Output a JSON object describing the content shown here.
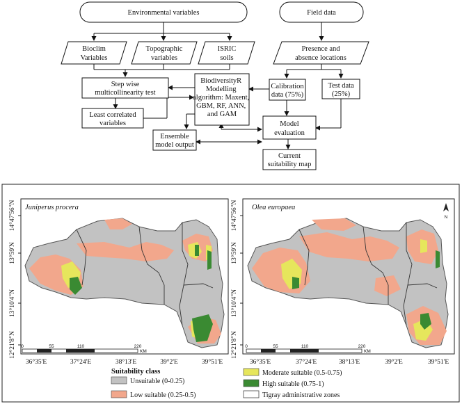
{
  "flowchart": {
    "nodes": {
      "env_vars": [
        "Environmental variables"
      ],
      "field_data": [
        "Field data"
      ],
      "bioclim": [
        "Bioclim",
        "Variables"
      ],
      "topo": [
        "Topographic",
        "variables"
      ],
      "isric": [
        "ISRIC",
        "soils"
      ],
      "presence": [
        "Presence and",
        "absence locations"
      ],
      "stepwise": [
        "Step wise",
        "multicollinearity test"
      ],
      "biodiv": [
        "BiodiversityR",
        "Modelling",
        "algorithm: Maxent,",
        "GBM, RF, ANN,",
        "and GAM"
      ],
      "calib": [
        "Calibration",
        "data (75%)"
      ],
      "test": [
        "Test data",
        "(25%)"
      ],
      "least": [
        "Least correlated",
        "variables"
      ],
      "ensemble": [
        "Ensemble",
        "model output"
      ],
      "eval": [
        "Model",
        "evaluation"
      ],
      "current": [
        "Current",
        "suitability map"
      ]
    }
  },
  "maps": {
    "left_title": "Juniperus procera",
    "right_title": "Olea europaea",
    "lat_labels": [
      "14°47'56\"N",
      "13°59'N",
      "13°10'4\"N",
      "12°21'8\"N"
    ],
    "lon_labels": [
      "36°35'E",
      "37°24'E",
      "38°13'E",
      "39°2'E",
      "39°51'E"
    ],
    "scale": {
      "ticks": [
        "0",
        "55",
        "110",
        "220"
      ],
      "unit": "KM"
    },
    "north_arrow": "N"
  },
  "legend": {
    "heading": "Suitability class",
    "items": [
      {
        "label": "Unsuitable (0-0.25)",
        "color": "#c2c2c2"
      },
      {
        "label": "Low suitable (0.25-0.5)",
        "color": "#f2a78c"
      },
      {
        "label": "Moderate suitable (0.5-0.75)",
        "color": "#e6e65c"
      },
      {
        "label": "High suitable (0.75-1)",
        "color": "#3a8a32"
      },
      {
        "label": "Tigray administrative zones",
        "color": "#ffffff"
      }
    ]
  }
}
